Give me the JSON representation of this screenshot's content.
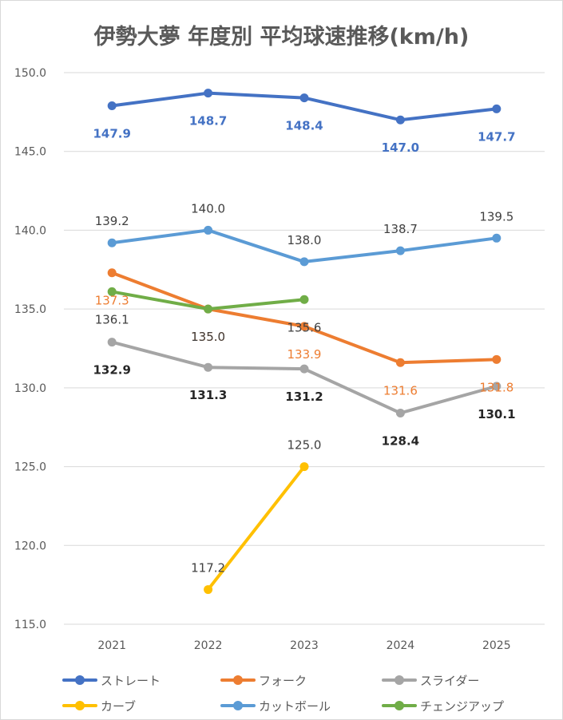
{
  "title": "伊勢大夢 年度別 平均球速推移(km/h)",
  "chart_data": {
    "type": "line",
    "title": "伊勢大夢 年度別 平均球速推移(km/h)",
    "categories": [
      "2021",
      "2022",
      "2023",
      "2024",
      "2025"
    ],
    "ylim": [
      115.0,
      150.0
    ],
    "yticks": [
      "115.0",
      "120.0",
      "125.0",
      "130.0",
      "135.0",
      "140.0",
      "145.0",
      "150.0"
    ],
    "grid": "horizontal",
    "legend_position": "bottom",
    "series": [
      {
        "name": "ストレート",
        "color": "#4472c4",
        "label_color": "#4472c4",
        "label_bold": true,
        "label_pos": "below",
        "values": [
          147.9,
          148.7,
          148.4,
          147.0,
          147.7
        ],
        "labels": [
          "147.9",
          "148.7",
          "148.4",
          "147.0",
          "147.7"
        ]
      },
      {
        "name": "フォーク",
        "color": "#ed7d31",
        "label_color": "#ed7d31",
        "label_bold": false,
        "label_pos": "below",
        "values": [
          137.3,
          135.0,
          133.9,
          131.6,
          131.8
        ],
        "labels": [
          "137.3",
          "135.0",
          "133.9",
          "131.6",
          "131.8"
        ]
      },
      {
        "name": "スライダー",
        "color": "#a5a5a5",
        "label_color": "#262626",
        "label_bold": true,
        "label_pos": "below",
        "values": [
          132.9,
          131.3,
          131.2,
          128.4,
          130.1
        ],
        "labels": [
          "132.9",
          "131.3",
          "131.2",
          "128.4",
          "130.1"
        ]
      },
      {
        "name": "カーブ",
        "color": "#ffc000",
        "label_color": "#404040",
        "label_bold": false,
        "label_pos": "above",
        "values": [
          null,
          117.2,
          125.0,
          null,
          null
        ],
        "labels": [
          "",
          "117.2",
          "125.0",
          "",
          ""
        ]
      },
      {
        "name": "カットボール",
        "color": "#5b9bd5",
        "label_color": "#404040",
        "label_bold": false,
        "label_pos": "above",
        "values": [
          139.2,
          140.0,
          138.0,
          138.7,
          139.5
        ],
        "labels": [
          "139.2",
          "140.0",
          "138.0",
          "138.7",
          "139.5"
        ]
      },
      {
        "name": "チェンジアップ",
        "color": "#70ad47",
        "label_color": "#404040",
        "label_bold": false,
        "label_pos": "below",
        "values": [
          136.1,
          135.0,
          135.6,
          null,
          null
        ],
        "labels": [
          "136.1",
          "135.0",
          "135.6",
          "",
          ""
        ]
      }
    ]
  }
}
